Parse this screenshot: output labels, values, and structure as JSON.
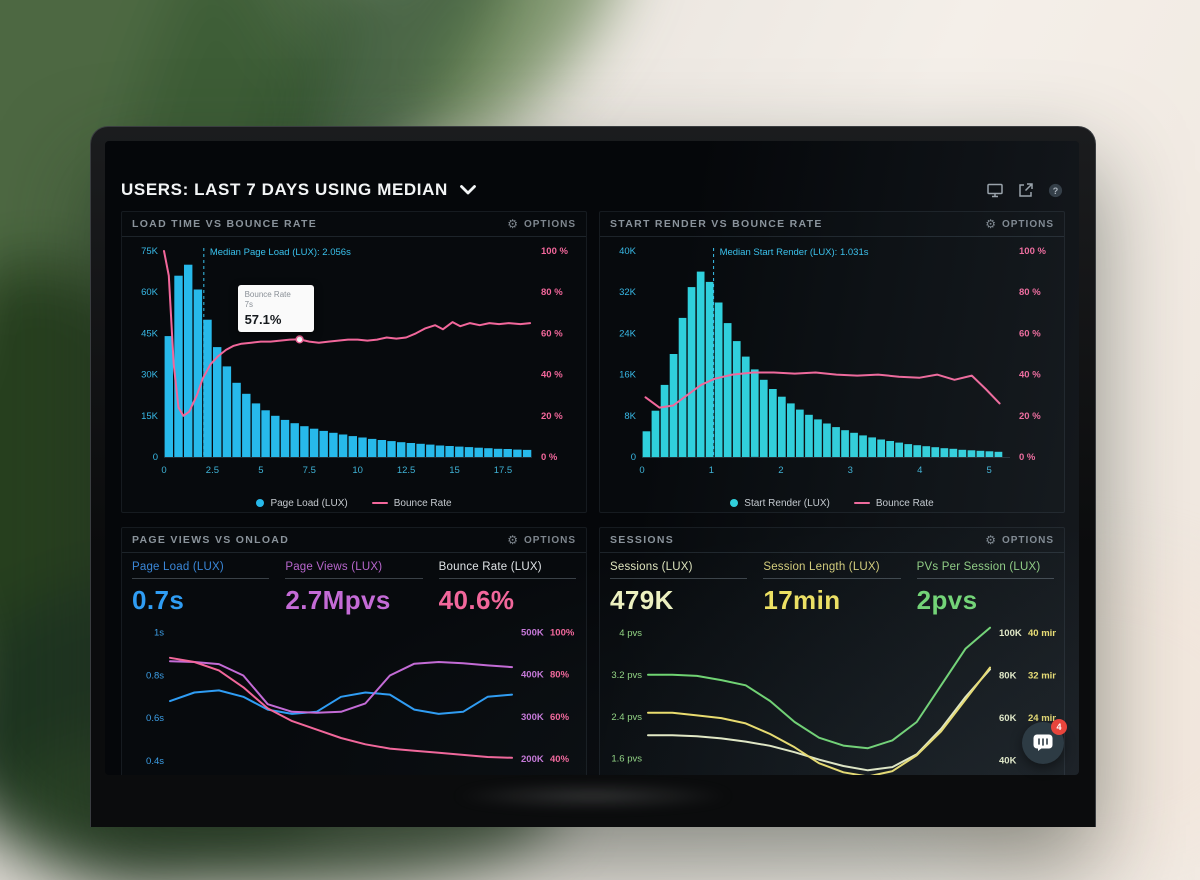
{
  "header": {
    "title": "USERS: LAST 7 DAYS USING MEDIAN"
  },
  "topbar_icons": [
    "display-icon",
    "share-icon",
    "help-icon"
  ],
  "ui": {
    "options_label": "OPTIONS"
  },
  "chat": {
    "badge": "4"
  },
  "chart_data": [
    {
      "id": "load_time",
      "type": "bar+line",
      "title": "LOAD TIME VS BOUNCE RATE",
      "xlim": [
        0,
        19
      ],
      "x_ticks": [
        0,
        2.5,
        5,
        7.5,
        10,
        12.5,
        15,
        17.5
      ],
      "left_ticks": [
        "75K",
        "60K",
        "45K",
        "30K",
        "15K",
        "0"
      ],
      "right_ticks": [
        "100 %",
        "80 %",
        "60 %",
        "40 %",
        "20 %",
        "0 %"
      ],
      "axis_colors": {
        "left": "#38b9e6",
        "right": "#f2679b",
        "x": "#3fb3d6"
      },
      "bars": {
        "name": "Page Load (LUX)",
        "color": "#27b9ea",
        "unit": "K",
        "ylim": [
          0,
          75
        ],
        "start": 0,
        "bin_width": 0.5,
        "values": [
          44,
          66,
          70,
          61,
          50,
          40,
          33,
          27,
          23,
          19.5,
          17,
          15,
          13.5,
          12.3,
          11.2,
          10.3,
          9.5,
          8.8,
          8.2,
          7.6,
          7.1,
          6.6,
          6.2,
          5.8,
          5.4,
          5.1,
          4.8,
          4.5,
          4.2,
          4,
          3.8,
          3.6,
          3.4,
          3.2,
          3,
          2.9,
          2.7,
          2.6
        ]
      },
      "line": {
        "name": "Bounce Rate",
        "color": "#f2679b",
        "unit": "%",
        "ylim": [
          0,
          100
        ],
        "points": [
          [
            0,
            100
          ],
          [
            0.25,
            88
          ],
          [
            0.5,
            45
          ],
          [
            0.75,
            24
          ],
          [
            1,
            20
          ],
          [
            1.3,
            22
          ],
          [
            1.7,
            30
          ],
          [
            2,
            38
          ],
          [
            2.4,
            45
          ],
          [
            2.8,
            49
          ],
          [
            3.2,
            52
          ],
          [
            3.6,
            54
          ],
          [
            4,
            55
          ],
          [
            4.5,
            55.5
          ],
          [
            5,
            56
          ],
          [
            5.5,
            56
          ],
          [
            6,
            56.5
          ],
          [
            6.5,
            57
          ],
          [
            7,
            57.1
          ],
          [
            7.5,
            56
          ],
          [
            8,
            55.5
          ],
          [
            8.5,
            56
          ],
          [
            9,
            56.5
          ],
          [
            9.5,
            57
          ],
          [
            10,
            57
          ],
          [
            10.5,
            56.5
          ],
          [
            11,
            57
          ],
          [
            11.5,
            58
          ],
          [
            12,
            57.5
          ],
          [
            12.5,
            58
          ],
          [
            13,
            60
          ],
          [
            13.5,
            62.5
          ],
          [
            14,
            64
          ],
          [
            14.4,
            62
          ],
          [
            14.9,
            65.5
          ],
          [
            15.3,
            63.5
          ],
          [
            15.8,
            65
          ],
          [
            16.3,
            64
          ],
          [
            16.8,
            65
          ],
          [
            17.3,
            64.5
          ],
          [
            17.8,
            65
          ],
          [
            18.4,
            64.5
          ],
          [
            18.9,
            65
          ]
        ]
      },
      "median_line": {
        "x": 2.056,
        "label": "Median Page Load (LUX): 2.056s",
        "color": "#39c1ec"
      },
      "tooltip": {
        "label": "Bounce Rate",
        "time": "7s",
        "value": "57.1%",
        "x": 7,
        "y": 57.1
      },
      "legend": [
        {
          "label": "Page Load (LUX)",
          "marker": "dot",
          "color": "#27b9ea"
        },
        {
          "label": "Bounce Rate",
          "marker": "line",
          "color": "#f2679b"
        }
      ]
    },
    {
      "id": "start_render",
      "type": "bar+line",
      "title": "START RENDER VS BOUNCE RATE",
      "xlim": [
        0,
        5.3
      ],
      "x_ticks": [
        0,
        1,
        2,
        3,
        4,
        5
      ],
      "left_ticks": [
        "40K",
        "32K",
        "24K",
        "16K",
        "8K",
        "0"
      ],
      "right_ticks": [
        "100 %",
        "80 %",
        "60 %",
        "40 %",
        "20 %",
        "0 %"
      ],
      "axis_colors": {
        "left": "#38b9e6",
        "right": "#f2679b",
        "x": "#3fb3d6"
      },
      "bars": {
        "name": "Start Render (LUX)",
        "color": "#2fd0dc",
        "unit": "K",
        "ylim": [
          0,
          40
        ],
        "start": 0,
        "bin_width": 0.13,
        "values": [
          5,
          9,
          14,
          20,
          27,
          33,
          36,
          34,
          30,
          26,
          22.5,
          19.5,
          17,
          15,
          13.2,
          11.7,
          10.4,
          9.2,
          8.2,
          7.3,
          6.5,
          5.8,
          5.2,
          4.7,
          4.2,
          3.8,
          3.4,
          3.1,
          2.8,
          2.5,
          2.3,
          2.1,
          1.9,
          1.7,
          1.6,
          1.4,
          1.3,
          1.2,
          1.1,
          1
        ]
      },
      "line": {
        "name": "Bounce Rate",
        "color": "#f2679b",
        "unit": "%",
        "ylim": [
          0,
          100
        ],
        "points": [
          [
            0.05,
            29
          ],
          [
            0.25,
            24
          ],
          [
            0.45,
            25
          ],
          [
            0.65,
            30
          ],
          [
            0.85,
            35
          ],
          [
            1.05,
            38
          ],
          [
            1.3,
            40
          ],
          [
            1.6,
            41
          ],
          [
            1.9,
            41
          ],
          [
            2.2,
            40.5
          ],
          [
            2.5,
            41
          ],
          [
            2.8,
            40
          ],
          [
            3.1,
            39.5
          ],
          [
            3.4,
            40
          ],
          [
            3.7,
            39
          ],
          [
            4,
            38.5
          ],
          [
            4.25,
            40
          ],
          [
            4.5,
            37.5
          ],
          [
            4.75,
            39.5
          ],
          [
            4.95,
            33
          ],
          [
            5.15,
            26
          ]
        ]
      },
      "median_line": {
        "x": 1.031,
        "label": "Median Start Render (LUX): 1.031s",
        "color": "#39c1ec"
      },
      "legend": [
        {
          "label": "Start Render (LUX)",
          "marker": "dot",
          "color": "#2fd0dc"
        },
        {
          "label": "Bounce Rate",
          "marker": "line",
          "color": "#f2679b"
        }
      ]
    },
    {
      "id": "page_views",
      "type": "line",
      "title": "PAGE VIEWS VS ONLOAD",
      "stats": [
        {
          "label": "Page Load (LUX)",
          "value": "0.7s",
          "label_color": "#3a87d8",
          "value_color": "#2f9df4"
        },
        {
          "label": "Page Views (LUX)",
          "value": "2.7Mpvs",
          "label_color": "#b766cc",
          "value_color": "#c46bd6"
        },
        {
          "label": "Bounce Rate (LUX)",
          "value": "40.6%",
          "label_color": "#dfe3e6",
          "value_color": "#f2679b"
        }
      ],
      "left_scale": 0,
      "right_scale": 2,
      "left_color": "#3da0e8",
      "right_colors": [
        "#c678d8",
        "#f2679b"
      ],
      "left_ticks": [
        {
          "label": "1s",
          "v": 1
        },
        {
          "label": "0.8s",
          "v": 0.8
        },
        {
          "label": "0.6s",
          "v": 0.6
        },
        {
          "label": "0.4s",
          "v": 0.4
        }
      ],
      "right_ticks": [
        {
          "a": "500K",
          "b": "100%",
          "v": 100
        },
        {
          "a": "400K",
          "b": "80%",
          "v": 80
        },
        {
          "a": "300K",
          "b": "60%",
          "v": 60
        },
        {
          "a": "200K",
          "b": "40%",
          "v": 40
        }
      ],
      "series": [
        {
          "name": "Onload (s)",
          "color": "#2f9df4",
          "ylim": [
            0.33,
            1.04
          ],
          "values": [
            0.68,
            0.72,
            0.73,
            0.7,
            0.64,
            0.62,
            0.63,
            0.7,
            0.72,
            0.71,
            0.64,
            0.62,
            0.63,
            0.7,
            0.71
          ]
        },
        {
          "name": "Page Views (K pvs)",
          "color": "#c46bd6",
          "ylim": [
            160,
            520
          ],
          "values": [
            432,
            430,
            425,
            398,
            330,
            312,
            310,
            312,
            332,
            398,
            426,
            430,
            427,
            422,
            418
          ]
        },
        {
          "name": "Bounce Rate (%)",
          "color": "#f2679b",
          "ylim": [
            32,
            104
          ],
          "values": [
            88,
            86,
            82,
            74,
            64,
            58,
            54,
            50,
            47,
            45,
            44,
            43,
            42,
            41,
            40.6
          ]
        }
      ]
    },
    {
      "id": "sessions",
      "type": "line",
      "title": "SESSIONS",
      "stats": [
        {
          "label": "Sessions (LUX)",
          "value": "479K",
          "label_color": "#dfe5bd",
          "value_color": "#eef2c0"
        },
        {
          "label": "Session Length (LUX)",
          "value": "17min",
          "label_color": "#d8d07a",
          "value_color": "#f2e35e"
        },
        {
          "label": "PVs Per Session (LUX)",
          "value": "2pvs",
          "label_color": "#8fce7f",
          "value_color": "#6fd66f"
        }
      ],
      "left_scale": 0,
      "right_scale": 2,
      "left_color": "#93d683",
      "right_colors": [
        "#e8edc6",
        "#f0e06a"
      ],
      "left_ticks": [
        {
          "label": "4 pvs",
          "v": 4
        },
        {
          "label": "3.2 pvs",
          "v": 3.2
        },
        {
          "label": "2.4 pvs",
          "v": 2.4
        },
        {
          "label": "1.6 pvs",
          "v": 1.6
        }
      ],
      "right_ticks": [
        {
          "a": "100K",
          "b": "40 min",
          "v": 40
        },
        {
          "a": "80K",
          "b": "32 min",
          "v": 32
        },
        {
          "a": "60K",
          "b": "24 min",
          "v": 24
        },
        {
          "a": "40K",
          "b": "",
          "v": 16
        }
      ],
      "series": [
        {
          "name": "PVs Per Session (pvs)",
          "color": "#6fd66f",
          "ylim": [
            1.27,
            4.17
          ],
          "values": [
            3.2,
            3.2,
            3.18,
            3.1,
            3,
            2.7,
            2.3,
            2,
            1.85,
            1.8,
            1.95,
            2.3,
            3,
            3.7,
            4.1
          ]
        },
        {
          "name": "Sessions (K)",
          "color": "#e8edc6",
          "ylim": [
            32.8,
            104.3
          ],
          "values": [
            52,
            52,
            51.5,
            50.5,
            49,
            47,
            44,
            40.5,
            37.5,
            35.5,
            37,
            43,
            55,
            70,
            83
          ]
        },
        {
          "name": "Session Length (min)",
          "color": "#f0e06a",
          "ylim": [
            13.1,
            41.7
          ],
          "values": [
            25,
            25,
            24.5,
            24,
            23,
            21,
            18.5,
            15.5,
            13.8,
            13,
            14,
            17,
            21.5,
            27.5,
            33.5
          ]
        }
      ]
    }
  ]
}
